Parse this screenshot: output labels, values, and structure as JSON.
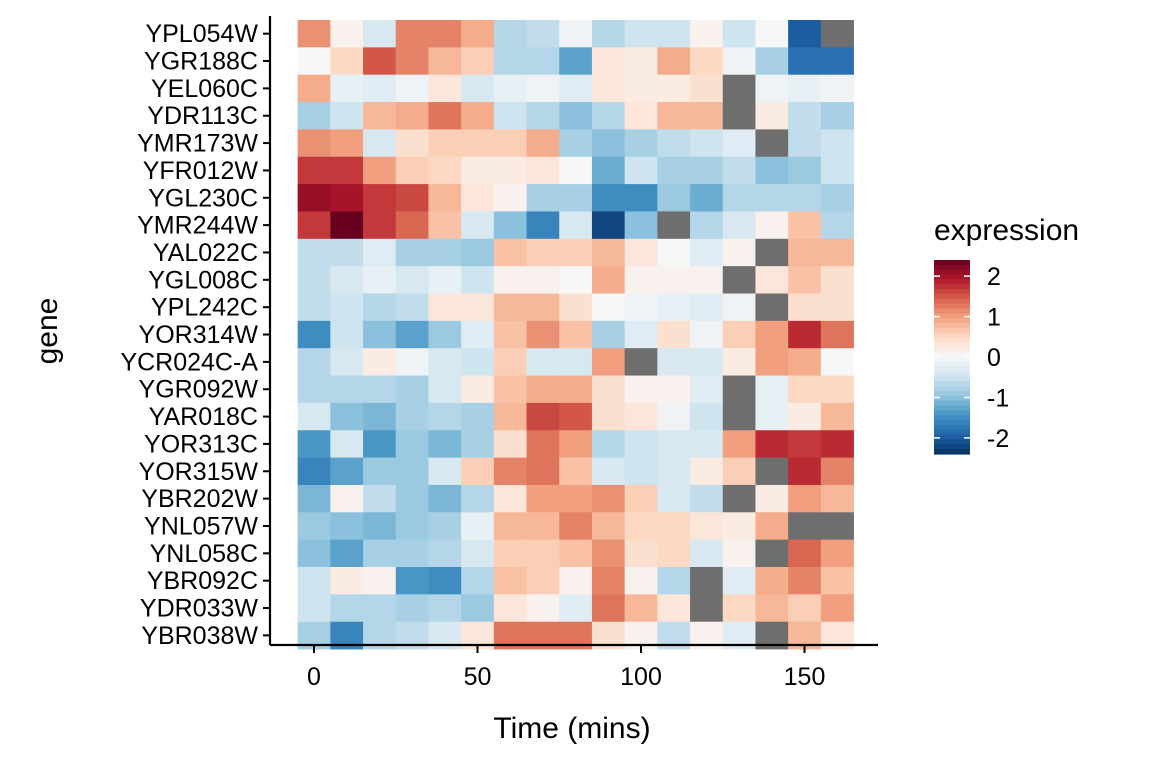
{
  "chart_data": {
    "type": "heatmap",
    "xlabel": "Time (mins)",
    "ylabel": "gene",
    "x_ticks": [
      0,
      50,
      100,
      150
    ],
    "xlim": [
      -8,
      172
    ],
    "x_times": [
      0,
      10,
      20,
      30,
      40,
      50,
      60,
      70,
      80,
      90,
      100,
      110,
      120,
      130,
      140,
      150,
      160
    ],
    "genes": [
      "YPL054W",
      "YGR188C",
      "YEL060C",
      "YDR113C",
      "YMR173W",
      "YFR012W",
      "YGL230C",
      "YMR244W",
      "YAL022C",
      "YGL008C",
      "YPL242C",
      "YOR314W",
      "YCR024C-A",
      "YGR092W",
      "YAR018C",
      "YOR313C",
      "YOR315W",
      "YBR202W",
      "YNL057W",
      "YNL058C",
      "YBR092C",
      "YDR033W",
      "YBR038W"
    ],
    "values": [
      [
        1.1,
        0.1,
        -0.4,
        1.2,
        1.2,
        0.9,
        -0.7,
        -0.6,
        -0.1,
        -0.7,
        -0.5,
        -0.5,
        0.1,
        -0.5,
        0.0,
        -2.0,
        null
      ],
      [
        0.0,
        0.5,
        1.5,
        1.2,
        0.8,
        0.6,
        -0.7,
        -0.7,
        -1.3,
        0.3,
        0.2,
        0.9,
        0.5,
        -0.1,
        -0.8,
        -1.8,
        -1.8
      ],
      [
        0.9,
        -0.2,
        -0.3,
        -0.1,
        0.3,
        -0.4,
        -0.2,
        -0.1,
        -0.3,
        0.3,
        0.2,
        0.2,
        0.4,
        null,
        -0.1,
        -0.2,
        -0.1
      ],
      [
        -0.8,
        -0.5,
        0.8,
        0.9,
        1.3,
        0.9,
        -0.5,
        -0.7,
        -1.0,
        -0.7,
        0.3,
        0.8,
        0.8,
        null,
        0.2,
        -0.6,
        -0.8
      ],
      [
        1.1,
        1.0,
        -0.4,
        0.4,
        0.6,
        0.6,
        0.6,
        0.9,
        -0.8,
        -1.0,
        -0.8,
        -0.6,
        -0.5,
        -0.3,
        null,
        -0.6,
        -0.5
      ],
      [
        1.7,
        1.7,
        1.0,
        0.6,
        0.5,
        0.2,
        0.2,
        0.3,
        0.0,
        -1.2,
        -0.5,
        -0.8,
        -0.8,
        -0.6,
        -1.0,
        -0.9,
        -0.5
      ],
      [
        2.1,
        2.0,
        1.7,
        1.6,
        0.8,
        0.3,
        0.1,
        -0.8,
        -0.8,
        -1.5,
        -1.5,
        -0.9,
        -1.2,
        -0.7,
        -0.7,
        -0.7,
        -0.8
      ],
      [
        1.7,
        2.4,
        1.7,
        1.4,
        0.7,
        -0.4,
        -1.0,
        -1.6,
        -0.4,
        -2.2,
        -1.0,
        null,
        -0.7,
        -0.4,
        0.1,
        0.7,
        -0.7
      ],
      [
        -0.6,
        -0.6,
        -0.3,
        -0.8,
        -0.8,
        -0.9,
        0.7,
        0.6,
        0.6,
        0.8,
        0.3,
        0.0,
        -0.3,
        0.1,
        null,
        0.8,
        0.8
      ],
      [
        -0.6,
        -0.4,
        -0.2,
        -0.4,
        -0.2,
        -0.5,
        0.1,
        0.1,
        0.0,
        0.9,
        0.1,
        0.1,
        0.1,
        null,
        0.3,
        0.7,
        0.4
      ],
      [
        -0.6,
        -0.5,
        -0.7,
        -0.6,
        0.3,
        0.3,
        0.8,
        0.8,
        0.4,
        0.0,
        -0.1,
        -0.2,
        -0.3,
        -0.1,
        null,
        0.4,
        0.4
      ],
      [
        -1.5,
        -0.5,
        -1.0,
        -1.3,
        -0.9,
        -0.3,
        0.7,
        1.1,
        0.7,
        -0.8,
        -0.3,
        0.4,
        -0.1,
        0.6,
        1.0,
        1.8,
        1.3
      ],
      [
        -0.7,
        -0.4,
        0.2,
        -0.1,
        -0.4,
        -0.5,
        0.6,
        -0.4,
        -0.4,
        1.0,
        null,
        -0.4,
        -0.4,
        0.2,
        1.0,
        0.9,
        0.0
      ],
      [
        -0.7,
        -0.7,
        -0.7,
        -0.8,
        -0.4,
        0.2,
        0.7,
        0.9,
        0.9,
        0.4,
        0.1,
        0.1,
        -0.3,
        null,
        -0.2,
        0.5,
        0.5
      ],
      [
        -0.4,
        -1.0,
        -1.1,
        -0.8,
        -0.7,
        -0.8,
        0.8,
        1.6,
        1.5,
        0.4,
        0.3,
        -0.1,
        -0.5,
        null,
        -0.2,
        0.2,
        0.8
      ],
      [
        -1.4,
        -0.4,
        -1.4,
        -0.9,
        -1.1,
        -0.8,
        0.4,
        1.3,
        1.0,
        -0.7,
        -0.5,
        -0.4,
        -0.4,
        1.0,
        1.8,
        1.7,
        1.8
      ],
      [
        -1.6,
        -1.3,
        -0.9,
        -0.9,
        -0.4,
        0.6,
        1.2,
        1.3,
        0.7,
        -0.4,
        -0.5,
        -0.4,
        0.2,
        0.6,
        null,
        1.8,
        1.2
      ],
      [
        -1.1,
        0.1,
        -0.6,
        -0.9,
        -1.1,
        -0.7,
        0.3,
        1.0,
        1.0,
        1.1,
        0.6,
        -0.4,
        -0.6,
        null,
        0.2,
        1.0,
        0.8
      ],
      [
        -0.9,
        -1.0,
        -1.1,
        -0.9,
        -0.8,
        -0.2,
        0.8,
        0.8,
        1.2,
        0.8,
        0.5,
        0.5,
        0.3,
        0.2,
        0.9,
        null,
        null
      ],
      [
        -1.0,
        -1.3,
        -0.8,
        -0.8,
        -0.7,
        -0.4,
        0.6,
        0.6,
        0.7,
        1.1,
        0.4,
        0.5,
        -0.4,
        0.1,
        null,
        1.4,
        1.0
      ],
      [
        -0.5,
        0.2,
        0.1,
        -1.4,
        -1.5,
        -0.7,
        0.7,
        0.6,
        0.1,
        1.2,
        0.1,
        -0.7,
        null,
        -0.3,
        0.9,
        1.2,
        0.7
      ],
      [
        -0.5,
        -0.7,
        -0.7,
        -0.8,
        -0.7,
        -0.9,
        0.3,
        0.1,
        -0.3,
        1.3,
        0.8,
        0.3,
        null,
        0.5,
        0.8,
        0.6,
        1.0
      ],
      [
        -0.8,
        -1.6,
        -0.7,
        -0.6,
        -0.4,
        0.3,
        1.3,
        1.3,
        1.3,
        0.4,
        0.1,
        -0.6,
        0.1,
        -0.3,
        null,
        0.8,
        0.3
      ]
    ],
    "legend": {
      "title": "expression",
      "ticks": [
        "2",
        "1",
        "0",
        "-1",
        "-2"
      ],
      "tick_values": [
        2,
        1,
        0,
        -1,
        -2
      ],
      "range": [
        -2.4,
        2.4
      ]
    },
    "na_color": "#6e6e6e",
    "colors": {
      "scale": [
        "#053061",
        "#2166ac",
        "#4393c3",
        "#92c5de",
        "#d1e5f0",
        "#f7f7f7",
        "#fddbc7",
        "#f4a582",
        "#d6604d",
        "#b2182b",
        "#67001f"
      ]
    },
    "grid": false
  }
}
